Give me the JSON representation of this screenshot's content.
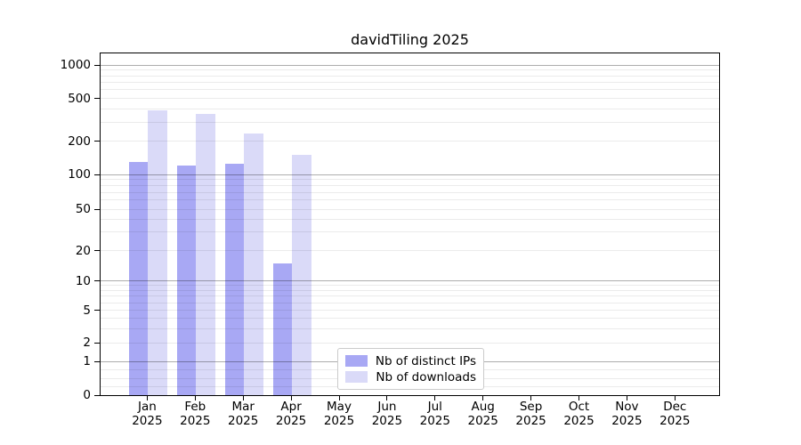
{
  "figure": {
    "title": "davidTiling 2025"
  },
  "chart_data": {
    "type": "bar",
    "title": "davidTiling 2025",
    "categories": [
      "Jan",
      "Feb",
      "Mar",
      "Apr",
      "May",
      "Jun",
      "Jul",
      "Aug",
      "Sep",
      "Oct",
      "Nov",
      "Dec"
    ],
    "x_year_label": "2025",
    "series": [
      {
        "name": "Nb of distinct IPs",
        "color": "#a8a8f4",
        "values": [
          130,
          120,
          125,
          15,
          0,
          0,
          0,
          0,
          0,
          0,
          0,
          0
        ]
      },
      {
        "name": "Nb of downloads",
        "color": "#dadaf8",
        "values": [
          390,
          360,
          235,
          150,
          0,
          0,
          0,
          0,
          0,
          0,
          0,
          0
        ]
      }
    ],
    "y_axis": {
      "scale": "symlog",
      "ticks": [
        0,
        1,
        2,
        5,
        10,
        20,
        50,
        100,
        200,
        500,
        1000
      ],
      "ylim": [
        0,
        1270
      ],
      "grid": true
    },
    "legend": {
      "position": "inside-bottom-center",
      "entries": [
        "Nb of distinct IPs",
        "Nb of downloads"
      ]
    },
    "colors": {
      "major_grid": "#b0b0b0",
      "minor_grid": "#ececec",
      "axis": "#000000",
      "legend_border": "#cbcbcb"
    }
  }
}
